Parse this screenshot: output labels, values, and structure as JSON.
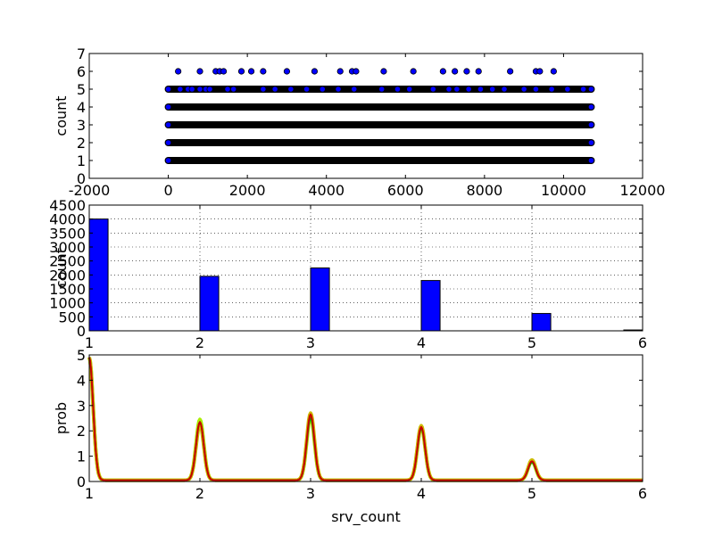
{
  "chart_data": [
    {
      "type": "scatter",
      "xlabel": "",
      "ylabel": "count",
      "xlim": [
        -2000,
        12000
      ],
      "ylim": [
        0,
        7
      ],
      "xticks": [
        "-2000",
        "0",
        "2000",
        "4000",
        "6000",
        "8000",
        "10000",
        "12000"
      ],
      "yticks": [
        "0",
        "1",
        "2",
        "3",
        "4",
        "5",
        "6",
        "7"
      ],
      "marker_color": "#0000ff",
      "dense_rows": [
        {
          "y": 1,
          "x_start": 0,
          "x_end": 10700
        },
        {
          "y": 2,
          "x_start": 0,
          "x_end": 10700
        },
        {
          "y": 3,
          "x_start": 0,
          "x_end": 10700
        },
        {
          "y": 4,
          "x_start": 0,
          "x_end": 10700
        },
        {
          "y": 5,
          "x_start": 0,
          "x_end": 10700
        }
      ],
      "sparse_points_y5": [
        300,
        500,
        600,
        800,
        950,
        1050,
        1500,
        1650,
        2400,
        2700,
        3100,
        3500,
        3900,
        4300,
        4700,
        5400,
        5800,
        6100,
        6700,
        7100,
        7300,
        7600,
        7900,
        8200,
        8500,
        9000,
        9300,
        9700,
        10100,
        10500
      ],
      "points_y6": [
        250,
        800,
        1200,
        1300,
        1400,
        1850,
        2100,
        2400,
        3000,
        3700,
        4350,
        4650,
        4750,
        5450,
        6200,
        6950,
        7250,
        7550,
        7850,
        8650,
        9300,
        9400,
        9750
      ],
      "grid": false
    },
    {
      "type": "bar",
      "xlabel": "",
      "ylabel": "count",
      "xlim": [
        1,
        6
      ],
      "ylim": [
        0,
        4500
      ],
      "xticks": [
        "1",
        "2",
        "3",
        "4",
        "5",
        "6"
      ],
      "yticks": [
        "0",
        "500",
        "1000",
        "1500",
        "2000",
        "2500",
        "3000",
        "3500",
        "4000",
        "4500"
      ],
      "bar_color": "#0000ff",
      "bins": [
        {
          "x": 1,
          "value": 4000
        },
        {
          "x": 2,
          "value": 1950
        },
        {
          "x": 3,
          "value": 2250
        },
        {
          "x": 4,
          "value": 1800
        },
        {
          "x": 5,
          "value": 620
        },
        {
          "x": 6,
          "value": 30
        }
      ],
      "grid": true
    },
    {
      "type": "line",
      "xlabel": "srv_count",
      "ylabel": "prob",
      "xlim": [
        1,
        6
      ],
      "ylim": [
        0,
        5
      ],
      "xticks": [
        "1",
        "2",
        "3",
        "4",
        "5",
        "6"
      ],
      "yticks": [
        "0",
        "1",
        "2",
        "3",
        "4",
        "5"
      ],
      "peaks": [
        {
          "x": 1,
          "height": 4.85
        },
        {
          "x": 2,
          "height": 2.3
        },
        {
          "x": 3,
          "height": 2.65
        },
        {
          "x": 4,
          "height": 2.15
        },
        {
          "x": 5,
          "height": 0.8
        }
      ],
      "series": [
        {
          "color": "#00aa00",
          "width": 2,
          "heights": [
            4.85,
            2.3,
            2.45,
            2.05,
            0.7
          ]
        },
        {
          "color": "#cc0000",
          "width": 2,
          "heights": [
            4.85,
            2.3,
            2.6,
            2.1,
            0.75
          ]
        },
        {
          "color": "#aaee00",
          "width": 4,
          "heights": [
            4.85,
            2.4,
            2.5,
            2.1,
            0.75
          ]
        },
        {
          "color": "#ccbb00",
          "width": 4,
          "heights": [
            4.85,
            2.2,
            2.65,
            2.15,
            0.8
          ]
        }
      ],
      "baseline": 0.05,
      "grid": false
    }
  ]
}
